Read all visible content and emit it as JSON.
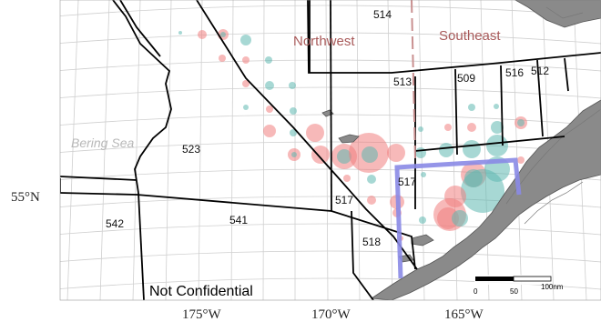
{
  "map": {
    "region_labels": {
      "northwest": "Northwest",
      "southeast": "Southeast",
      "bering_sea": "Bering Sea"
    },
    "area_labels": [
      "514",
      "513",
      "509",
      "516",
      "512",
      "523",
      "517",
      "517",
      "518",
      "542",
      "541"
    ],
    "lat_labels": [
      "55°N"
    ],
    "lon_labels": [
      "175°W",
      "170°W",
      "165°W"
    ],
    "status_label": "Not Confidential",
    "scale_bar": {
      "ticks": [
        "0",
        "50",
        "100nm"
      ]
    },
    "colors": {
      "northwest_bubbles": "#f08080",
      "southeast_bubbles": "#5fb8b0",
      "overlap": "#a7a7a7",
      "region_label": "#a85a5a",
      "divider": "#c99090",
      "highlight_box": "#8a8ae6",
      "land": "#8a8a8a",
      "graticule": "#c8c8c8"
    },
    "icons": [
      "land-mass",
      "scale-bar"
    ]
  }
}
